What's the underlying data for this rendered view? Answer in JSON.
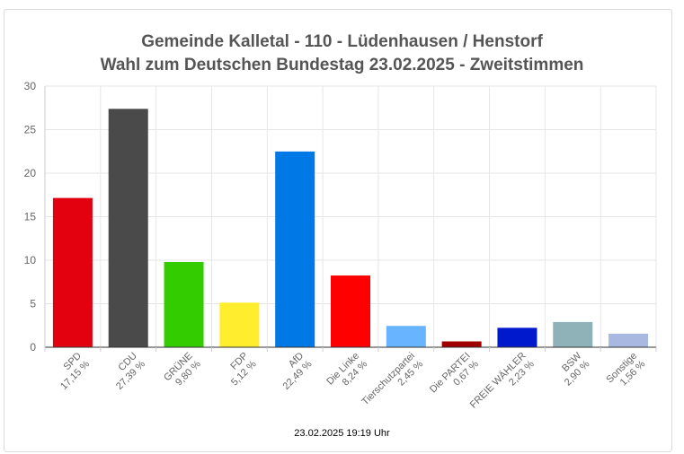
{
  "chart_data": {
    "type": "bar",
    "title": "Gemeinde Kalletal - 110 - Lüdenhausen / Henstorf",
    "subtitle": "Wahl zum Deutschen Bundestag 23.02.2025  - Zweitstimmen",
    "categories": [
      "SPD",
      "CDU",
      "GRÜNE",
      "FDP",
      "AfD",
      "Die Linke",
      "Tierschutzpartei",
      "Die PARTEI",
      "FREIE WÄHLER",
      "BSW",
      "Sonstige"
    ],
    "value_labels": [
      "17,15 %",
      "27,39 %",
      "9,80 %",
      "5,12 %",
      "22,49 %",
      "8,24 %",
      "2,45 %",
      "0,67 %",
      "2,23 %",
      "2,90 %",
      "1,56 %"
    ],
    "values": [
      17.15,
      27.39,
      9.8,
      5.12,
      22.49,
      8.24,
      2.45,
      0.67,
      2.23,
      2.9,
      1.56
    ],
    "colors": [
      "#e3000f",
      "#4a4a4a",
      "#33cc00",
      "#ffed2e",
      "#0078e6",
      "#ff0000",
      "#69b4ff",
      "#a00000",
      "#0019cc",
      "#8fb2b8",
      "#a8b8e0"
    ],
    "yticks": [
      0,
      5,
      10,
      15,
      20,
      25,
      30
    ],
    "ylim": [
      0,
      30
    ],
    "xlabel": "",
    "ylabel": "",
    "grid": true
  },
  "footer": {
    "timestamp": "23.02.2025 19:19 Uhr"
  }
}
